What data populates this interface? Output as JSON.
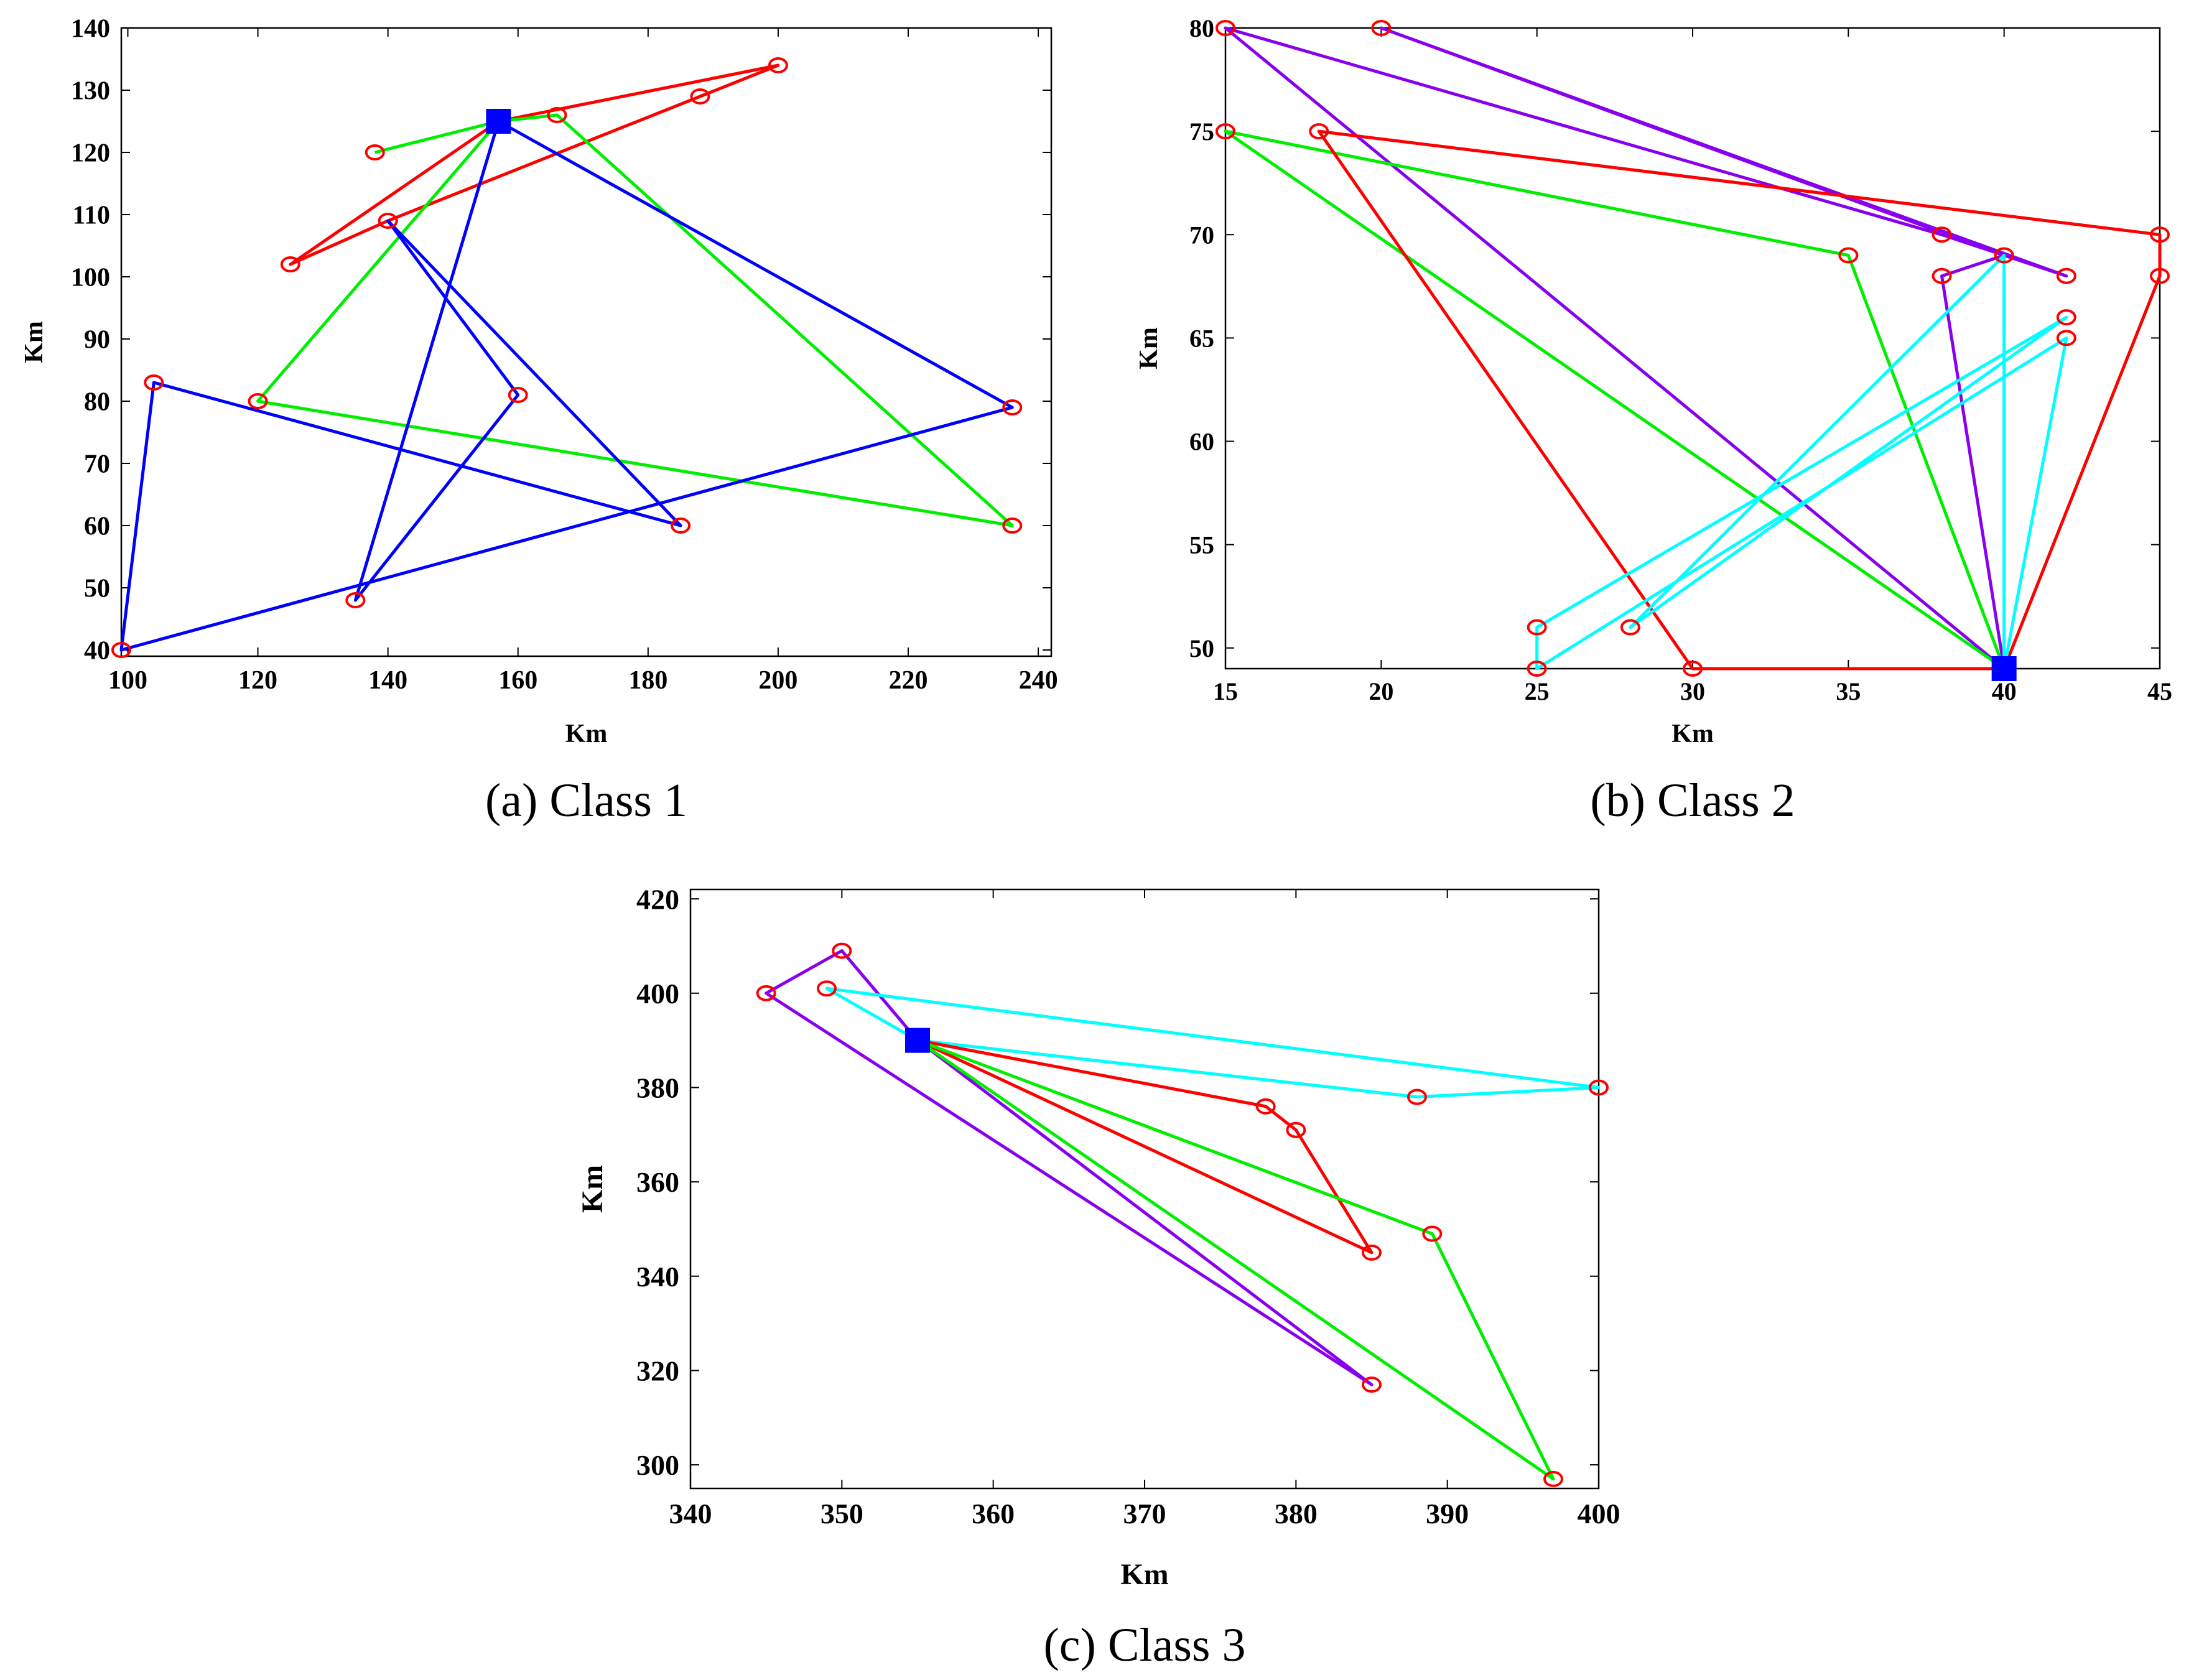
{
  "chart_data": [
    {
      "type": "line",
      "caption": "(a) Class 1",
      "xlabel": "Km",
      "ylabel": "Km",
      "xlim": [
        99,
        242
      ],
      "ylim": [
        39,
        140
      ],
      "xticks": [
        100,
        120,
        140,
        160,
        180,
        200,
        220,
        240
      ],
      "yticks": [
        40,
        50,
        60,
        70,
        80,
        90,
        100,
        110,
        120,
        130,
        140
      ],
      "depot": {
        "x": 157,
        "y": 125
      },
      "points": [
        [
          138,
          120
        ],
        [
          166,
          126
        ],
        [
          200,
          134
        ],
        [
          188,
          129
        ],
        [
          140,
          109
        ],
        [
          125,
          102
        ],
        [
          104,
          83
        ],
        [
          120,
          80
        ],
        [
          160,
          81
        ],
        [
          185,
          60
        ],
        [
          236,
          79
        ],
        [
          236,
          60
        ],
        [
          135,
          48
        ],
        [
          99,
          40
        ]
      ],
      "series": [
        {
          "name": "route-red",
          "color": "#ff0000",
          "points": [
            [
              157,
              125
            ],
            [
              200,
              134
            ],
            [
              188,
              129
            ],
            [
              140,
              109
            ],
            [
              125,
              102
            ],
            [
              157,
              125
            ]
          ]
        },
        {
          "name": "route-green-1",
          "color": "#00ee00",
          "points": [
            [
              157,
              125
            ],
            [
              138,
              120
            ]
          ]
        },
        {
          "name": "route-green-2",
          "color": "#00ee00",
          "points": [
            [
              157,
              125
            ],
            [
              166,
              126
            ],
            [
              236,
              60
            ],
            [
              120,
              80
            ],
            [
              157,
              125
            ]
          ]
        },
        {
          "name": "route-blue-1",
          "color": "#0000ff",
          "points": [
            [
              157,
              125
            ],
            [
              236,
              79
            ],
            [
              99,
              40
            ],
            [
              104,
              83
            ],
            [
              185,
              60
            ],
            [
              140,
              109
            ],
            [
              160,
              81
            ],
            [
              135,
              48
            ],
            [
              157,
              125
            ]
          ]
        }
      ]
    },
    {
      "type": "line",
      "caption": "(b) Class 2",
      "xlabel": "Km",
      "ylabel": "Km",
      "xlim": [
        15,
        45
      ],
      "ylim": [
        49,
        80
      ],
      "xticks": [
        15,
        20,
        25,
        30,
        35,
        40,
        45
      ],
      "yticks": [
        50,
        55,
        60,
        65,
        70,
        75,
        80
      ],
      "depot": {
        "x": 40,
        "y": 49
      },
      "points": [
        [
          15,
          80
        ],
        [
          20,
          80
        ],
        [
          15,
          75
        ],
        [
          18,
          75
        ],
        [
          45,
          70
        ],
        [
          45,
          68
        ],
        [
          38,
          70
        ],
        [
          40,
          69
        ],
        [
          42,
          68
        ],
        [
          35,
          69
        ],
        [
          38,
          68
        ],
        [
          42,
          66
        ],
        [
          42,
          65
        ],
        [
          25,
          51
        ],
        [
          28,
          51
        ],
        [
          25,
          49
        ],
        [
          30,
          49
        ]
      ],
      "series": [
        {
          "name": "route-purple",
          "color": "#8800ee",
          "points": [
            [
              40,
              49
            ],
            [
              15,
              80
            ],
            [
              38,
              70
            ],
            [
              42,
              68
            ],
            [
              20,
              80
            ],
            [
              40,
              69
            ],
            [
              38,
              68
            ],
            [
              40,
              49
            ]
          ]
        },
        {
          "name": "route-green",
          "color": "#00ee00",
          "points": [
            [
              40,
              49
            ],
            [
              15,
              75
            ],
            [
              35,
              69
            ],
            [
              40,
              49
            ]
          ]
        },
        {
          "name": "route-red",
          "color": "#ff0000",
          "points": [
            [
              40,
              49
            ],
            [
              45,
              68
            ],
            [
              45,
              70
            ],
            [
              18,
              75
            ],
            [
              30,
              49
            ],
            [
              40,
              49
            ]
          ]
        },
        {
          "name": "route-cyan",
          "color": "#00ffff",
          "points": [
            [
              40,
              49
            ],
            [
              40,
              69
            ],
            [
              28,
              51
            ],
            [
              42,
              66
            ],
            [
              25,
              51
            ],
            [
              25,
              49
            ],
            [
              42,
              65
            ],
            [
              40,
              49
            ]
          ]
        }
      ]
    },
    {
      "type": "line",
      "caption": "(c) Class 3",
      "xlabel": "Km",
      "ylabel": "Km",
      "xlim": [
        340,
        400
      ],
      "ylim": [
        295,
        422
      ],
      "xticks": [
        340,
        350,
        360,
        370,
        380,
        390,
        400
      ],
      "yticks": [
        300,
        320,
        340,
        360,
        380,
        400,
        420
      ],
      "depot": {
        "x": 355,
        "y": 390
      },
      "points": [
        [
          345,
          400
        ],
        [
          350,
          409
        ],
        [
          349,
          401
        ],
        [
          400,
          380
        ],
        [
          388,
          378
        ],
        [
          378,
          376
        ],
        [
          380,
          371
        ],
        [
          389,
          349
        ],
        [
          385,
          345
        ],
        [
          385,
          317
        ],
        [
          397,
          297
        ]
      ],
      "series": [
        {
          "name": "route-purple",
          "color": "#8800ee",
          "points": [
            [
              355,
              390
            ],
            [
              350,
              409
            ],
            [
              345,
              400
            ],
            [
              385,
              317
            ],
            [
              355,
              390
            ]
          ]
        },
        {
          "name": "route-cyan",
          "color": "#00ffff",
          "points": [
            [
              355,
              390
            ],
            [
              349,
              401
            ],
            [
              400,
              380
            ],
            [
              388,
              378
            ],
            [
              355,
              390
            ]
          ]
        },
        {
          "name": "route-red",
          "color": "#ff0000",
          "points": [
            [
              355,
              390
            ],
            [
              378,
              376
            ],
            [
              380,
              371
            ],
            [
              385,
              345
            ],
            [
              355,
              390
            ]
          ]
        },
        {
          "name": "route-green",
          "color": "#00ee00",
          "points": [
            [
              355,
              390
            ],
            [
              389,
              349
            ],
            [
              397,
              297
            ],
            [
              355,
              390
            ]
          ]
        }
      ]
    }
  ]
}
